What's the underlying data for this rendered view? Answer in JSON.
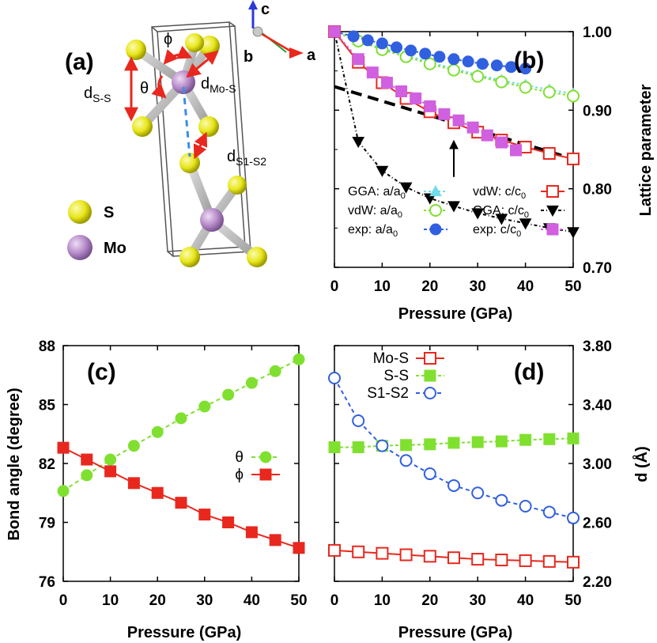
{
  "figure": {
    "panel_labels": [
      "(a)",
      "(b)",
      "(c)",
      "(d)"
    ],
    "structure": {
      "axis_labels": [
        "c",
        "b",
        "a"
      ],
      "labels": {
        "phi": "ϕ",
        "theta": "θ",
        "d_ss": "d",
        "d_ss_sub": "S-S",
        "d_mos": "d",
        "d_mos_sub": "Mo-S",
        "d_s1s2": "d",
        "d_s1s2_sub": "S1-S2"
      },
      "legend": [
        {
          "label": "S",
          "color": "#e8e61a"
        },
        {
          "label": "Mo",
          "color": "#b58ac8"
        }
      ]
    },
    "colors": {
      "red": "#e8281e",
      "green": "#80e030",
      "blue": "#3060e0",
      "cyan": "#70dce8",
      "magenta": "#d060e0",
      "black": "#000000"
    }
  },
  "chart_data": [
    {
      "panel": "(b)",
      "type": "line",
      "xlabel": "Pressure (GPa)",
      "ylabel": "Lattice parameter",
      "xlim": [
        0,
        50
      ],
      "ylim": [
        0.7,
        1.0
      ],
      "xticks": [
        0,
        10,
        20,
        30,
        40,
        50
      ],
      "yticks": [
        0.7,
        0.8,
        0.9,
        1.0
      ],
      "ytick_labels": [
        "0.70",
        "0.80",
        "0.90",
        "1.00"
      ],
      "legend": [
        {
          "label": "GGA: a/a",
          "sub": "0"
        },
        {
          "label": "vdW: a/a",
          "sub": "0"
        },
        {
          "label": "exp: a/a",
          "sub": "0"
        },
        {
          "label": "vdW: c/c",
          "sub": "0"
        },
        {
          "label": "GGA: c/c",
          "sub": "0"
        },
        {
          "label": "exp: c/c",
          "sub": "0"
        }
      ],
      "series": [
        {
          "name": "GGA: a/a0",
          "marker": "triangle-up",
          "color": "#70dce8",
          "dash": "3,3",
          "x": [
            0,
            5,
            10,
            15,
            20,
            25,
            30,
            35,
            40,
            45,
            50
          ],
          "y": [
            1.0,
            0.989,
            0.979,
            0.97,
            0.961,
            0.953,
            0.945,
            0.938,
            0.932,
            0.926,
            0.921
          ]
        },
        {
          "name": "vdW: a/a0",
          "marker": "circle-open",
          "color": "#80e030",
          "dash": "3,3",
          "x": [
            0,
            5,
            10,
            15,
            20,
            25,
            30,
            35,
            40,
            45,
            50
          ],
          "y": [
            1.0,
            0.988,
            0.977,
            0.968,
            0.959,
            0.951,
            0.943,
            0.936,
            0.929,
            0.923,
            0.918
          ]
        },
        {
          "name": "exp: a/a0",
          "marker": "circle-filled",
          "color": "#3060e0",
          "dash": "4,3",
          "x": [
            0,
            4,
            7,
            10,
            13,
            16,
            19,
            22,
            25,
            28,
            31,
            34,
            37,
            40
          ],
          "y": [
            1.0,
            0.994,
            0.989,
            0.985,
            0.98,
            0.976,
            0.972,
            0.968,
            0.965,
            0.962,
            0.959,
            0.957,
            0.955,
            0.953
          ]
        },
        {
          "name": "vdW: c/c0",
          "marker": "square-open",
          "color": "#e8281e",
          "dash": "",
          "x": [
            0,
            5,
            10,
            15,
            20,
            25,
            30,
            35,
            40,
            45,
            50
          ],
          "y": [
            1.0,
            0.961,
            0.935,
            0.915,
            0.898,
            0.884,
            0.872,
            0.862,
            0.853,
            0.845,
            0.838
          ]
        },
        {
          "name": "GGA: c/c0",
          "marker": "triangle-down-filled",
          "color": "#000000",
          "dash": "4,3,1,3",
          "x": [
            0,
            5,
            10,
            15,
            20,
            25,
            30,
            35,
            40,
            45,
            50
          ],
          "y": [
            1.0,
            0.86,
            0.823,
            0.802,
            0.788,
            0.778,
            0.769,
            0.762,
            0.756,
            0.75,
            0.745
          ]
        },
        {
          "name": "exp: c/c0",
          "marker": "square-filled",
          "color": "#d060e0",
          "dash": "3,3",
          "x": [
            0,
            5,
            8,
            11,
            14,
            17,
            20,
            23,
            26,
            29,
            32,
            35,
            38
          ],
          "y": [
            1.0,
            0.965,
            0.948,
            0.935,
            0.924,
            0.915,
            0.905,
            0.895,
            0.887,
            0.878,
            0.868,
            0.859,
            0.849
          ]
        }
      ],
      "fit_line": {
        "x": [
          0,
          50
        ],
        "y": [
          0.93,
          0.838
        ],
        "color": "#000000"
      },
      "annotation": {
        "type": "arrow",
        "x": 25,
        "y_from": 0.815,
        "y_to": 0.868
      }
    },
    {
      "panel": "(c)",
      "type": "line",
      "xlabel": "Pressure (GPa)",
      "ylabel": "Bond angle (degree)",
      "xlim": [
        0,
        50
      ],
      "ylim": [
        76,
        88
      ],
      "xticks": [
        0,
        10,
        20,
        30,
        40,
        50
      ],
      "yticks": [
        76,
        79,
        82,
        85,
        88
      ],
      "legend": [
        {
          "label": "θ"
        },
        {
          "label": "ϕ"
        }
      ],
      "series": [
        {
          "name": "θ",
          "marker": "circle-filled",
          "color": "#80e030",
          "dash": "5,4",
          "x": [
            0,
            5,
            10,
            15,
            20,
            25,
            30,
            35,
            40,
            45,
            50
          ],
          "y": [
            80.6,
            81.4,
            82.2,
            82.9,
            83.6,
            84.3,
            84.9,
            85.5,
            86.1,
            86.7,
            87.3
          ]
        },
        {
          "name": "ϕ",
          "marker": "square-filled",
          "color": "#e8281e",
          "dash": "",
          "x": [
            0,
            5,
            10,
            15,
            20,
            25,
            30,
            35,
            40,
            45,
            50
          ],
          "y": [
            82.8,
            82.2,
            81.6,
            81.0,
            80.5,
            80.0,
            79.4,
            79.0,
            78.5,
            78.1,
            77.7
          ]
        }
      ]
    },
    {
      "panel": "(d)",
      "type": "line",
      "xlabel": "Pressure (GPa)",
      "ylabel": "d (Å)",
      "xlim": [
        0,
        50
      ],
      "ylim": [
        2.2,
        3.8
      ],
      "xticks": [
        0,
        10,
        20,
        30,
        40,
        50
      ],
      "yticks": [
        2.2,
        2.6,
        3.0,
        3.4,
        3.8
      ],
      "ytick_labels": [
        "2.20",
        "2.60",
        "3.00",
        "3.40",
        "3.80"
      ],
      "legend": [
        {
          "label": "Mo-S"
        },
        {
          "label": "S-S"
        },
        {
          "label": "S1-S2"
        }
      ],
      "series": [
        {
          "name": "Mo-S",
          "marker": "square-open",
          "color": "#e8281e",
          "dash": "",
          "x": [
            0,
            5,
            10,
            15,
            20,
            25,
            30,
            35,
            40,
            45,
            50
          ],
          "y": [
            2.41,
            2.4,
            2.39,
            2.38,
            2.37,
            2.36,
            2.35,
            2.345,
            2.34,
            2.335,
            2.33
          ]
        },
        {
          "name": "S-S",
          "marker": "square-filled",
          "color": "#80e030",
          "dash": "4,3",
          "x": [
            0,
            5,
            10,
            15,
            20,
            25,
            30,
            35,
            40,
            45,
            50
          ],
          "y": [
            3.11,
            3.11,
            3.12,
            3.125,
            3.13,
            3.14,
            3.145,
            3.15,
            3.16,
            3.165,
            3.17
          ]
        },
        {
          "name": "S1-S2",
          "marker": "circle-open",
          "color": "#3060e0",
          "dash": "5,4",
          "x": [
            0,
            5,
            10,
            15,
            20,
            25,
            30,
            35,
            40,
            45,
            50
          ],
          "y": [
            3.58,
            3.29,
            3.12,
            3.02,
            2.93,
            2.85,
            2.8,
            2.75,
            2.71,
            2.67,
            2.63
          ]
        }
      ]
    }
  ]
}
